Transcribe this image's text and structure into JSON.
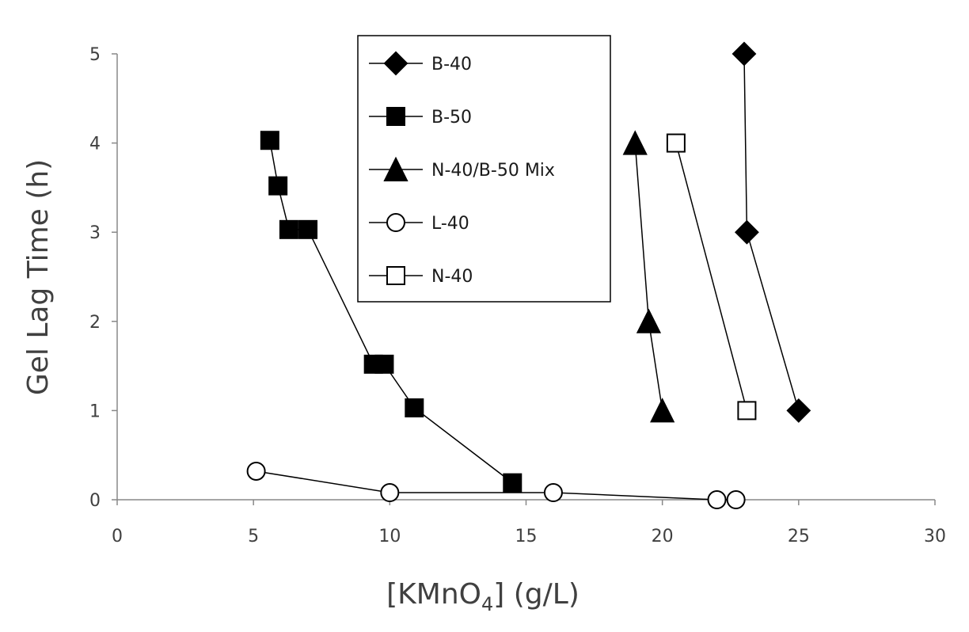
{
  "chart_data": {
    "type": "scatter",
    "xlabel": {
      "main": "[KMnO",
      "sub": "4",
      "tail": "] (g/L)"
    },
    "ylabel": "Gel Lag Time (h)",
    "xlim": [
      0,
      30
    ],
    "ylim": [
      0,
      5
    ],
    "xticks": [
      "0",
      "5",
      "10",
      "15",
      "20",
      "25",
      "30"
    ],
    "yticks": [
      "0",
      "1",
      "2",
      "3",
      "4",
      "5"
    ],
    "grid": false,
    "legend_position": "top-center",
    "series": [
      {
        "name": "B-40",
        "marker": "diamond",
        "fill": "#000000",
        "x": [
          23,
          23.1,
          25
        ],
        "y": [
          5,
          3,
          1
        ]
      },
      {
        "name": "B-50",
        "marker": "square",
        "fill": "#000000",
        "x": [
          5.6,
          5.9,
          6.3,
          7.0,
          9.4,
          9.8,
          10.9,
          14.5
        ],
        "y": [
          4.03,
          3.52,
          3.03,
          3.03,
          1.52,
          1.52,
          1.03,
          0.19
        ]
      },
      {
        "name": "N-40/B-50 Mix",
        "marker": "triangle",
        "fill": "#000000",
        "x": [
          19,
          19.5,
          20
        ],
        "y": [
          4,
          2,
          1
        ]
      },
      {
        "name": "L-40",
        "marker": "circle",
        "fill": "#ffffff",
        "x": [
          5.1,
          10,
          16,
          22,
          22.7
        ],
        "y": [
          0.32,
          0.08,
          0.08,
          0,
          0
        ]
      },
      {
        "name": "N-40",
        "marker": "square",
        "fill": "#ffffff",
        "x": [
          20.5,
          23.1
        ],
        "y": [
          4,
          1
        ]
      }
    ]
  }
}
